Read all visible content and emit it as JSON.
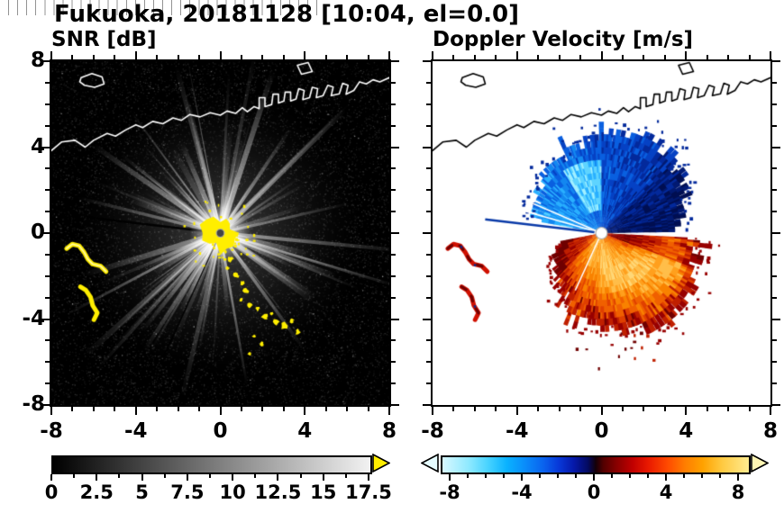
{
  "title": "Fukuoka, 20181128 [10:04, el=0.0]",
  "panels": {
    "snr": {
      "title": "SNR [dB]"
    },
    "vel": {
      "title": "Doppler Velocity [m/s]"
    }
  },
  "axes": {
    "range": [
      -8,
      8
    ],
    "major_ticks": [
      -8,
      -4,
      0,
      4,
      8
    ],
    "minor_step": 1,
    "x_labels": [
      "-8",
      "-4",
      "0",
      "4",
      "8"
    ],
    "y_labels": [
      "8",
      "4",
      "0",
      "-4",
      "-8"
    ]
  },
  "colorbars": {
    "snr": {
      "min": 0,
      "max": 17.5,
      "values": [
        0,
        2.5,
        5,
        7.5,
        10,
        12.5,
        15,
        17.5
      ],
      "labels": [
        "0",
        "2.5",
        "5",
        "7.5",
        "10",
        "12.5",
        "15",
        "17.5"
      ],
      "minor_step": 1.25,
      "cell_step": 0.5,
      "start_color": "#000000",
      "end_color": "#f2f2f2",
      "over_arrow_color": "#ffee00"
    },
    "vel": {
      "min": -8.5,
      "max": 8.5,
      "values": [
        -8,
        -4,
        0,
        4,
        8
      ],
      "labels": [
        "-8",
        "-4",
        "0",
        "4",
        "8"
      ],
      "minor_step": 1,
      "stops": [
        [
          0,
          "#d8f8ff"
        ],
        [
          0.09,
          "#8ae8ff"
        ],
        [
          0.15,
          "#46d2ff"
        ],
        [
          0.21,
          "#0ab2ff"
        ],
        [
          0.27,
          "#0a8cfa"
        ],
        [
          0.33,
          "#0a62ee"
        ],
        [
          0.38,
          "#0838d8"
        ],
        [
          0.43,
          "#0618a8"
        ],
        [
          0.475,
          "#030a60"
        ],
        [
          0.5,
          "#140008"
        ],
        [
          0.525,
          "#520000"
        ],
        [
          0.57,
          "#8a0000"
        ],
        [
          0.62,
          "#c00000"
        ],
        [
          0.67,
          "#e81800"
        ],
        [
          0.735,
          "#ff4a00"
        ],
        [
          0.79,
          "#ff7c00"
        ],
        [
          0.85,
          "#ffa200"
        ],
        [
          0.91,
          "#ffc83e"
        ],
        [
          1,
          "#ffeb90"
        ]
      ],
      "under_arrow_color": "#e6fcff",
      "over_arrow_color": "#fff6b4"
    }
  },
  "chart_data": {
    "type": "heatmap",
    "subtype": "radar PPI (plan position indicator), two-panel display",
    "station": "Fukuoka",
    "date": "20181128",
    "time": "10:04",
    "elevation_deg": 0.0,
    "axis_range": [
      -8,
      8
    ],
    "panels": [
      {
        "name": "SNR",
        "units": "dB",
        "scale_range": [
          0,
          17.5
        ],
        "scale_ticks": [
          0,
          2.5,
          5,
          7.5,
          10,
          12.5,
          15,
          17.5
        ],
        "palette": "grayscale, 0 dB = black to 17.5 dB = white, above range = yellow",
        "content": "Dark noisy background with bright radial beams from the radar at the origin; saturated (yellow) echoes at the radar site, along a clutter chain to the south-southeast, and on two island/coast arcs to the west; coastline with harbor structures drawn in white along the top."
      },
      {
        "name": "Doppler Velocity",
        "units": "m/s",
        "scale_range": [
          -8,
          8
        ],
        "scale_ticks": [
          -8,
          -4,
          0,
          4,
          8
        ],
        "palette": "cyan-blue for negative, black near 0, red-orange-yellow for positive",
        "content": "Velocity fan around the radar: negative velocities (blue, about -1 to -8 m/s) over the northern half, positive velocities (orange/red, about +1 to +8 m/s) over the southern half; sparse red echoes over the western island arcs; coastline drawn in black."
      }
    ],
    "geometry": {
      "center": [
        0.5,
        0.5
      ],
      "coastline": [
        [
          0,
          0.26
        ],
        [
          0.03,
          0.235
        ],
        [
          0.07,
          0.23
        ],
        [
          0.1,
          0.25
        ],
        [
          0.125,
          0.23
        ],
        [
          0.165,
          0.21
        ],
        [
          0.19,
          0.218
        ],
        [
          0.22,
          0.2
        ],
        [
          0.25,
          0.185
        ],
        [
          0.27,
          0.193
        ],
        [
          0.3,
          0.175
        ],
        [
          0.33,
          0.182
        ],
        [
          0.36,
          0.165
        ],
        [
          0.385,
          0.172
        ],
        [
          0.41,
          0.155
        ],
        [
          0.44,
          0.162
        ],
        [
          0.47,
          0.15
        ],
        [
          0.5,
          0.157
        ],
        [
          0.52,
          0.145
        ],
        [
          0.545,
          0.152
        ],
        [
          0.565,
          0.135
        ],
        [
          0.58,
          0.147
        ],
        [
          0.6,
          0.132
        ],
        [
          0.615,
          0.138
        ],
        [
          0.615,
          0.106
        ],
        [
          0.632,
          0.106
        ],
        [
          0.632,
          0.132
        ],
        [
          0.652,
          0.126
        ],
        [
          0.656,
          0.096
        ],
        [
          0.672,
          0.096
        ],
        [
          0.672,
          0.122
        ],
        [
          0.688,
          0.116
        ],
        [
          0.692,
          0.09
        ],
        [
          0.708,
          0.09
        ],
        [
          0.708,
          0.116
        ],
        [
          0.724,
          0.11
        ],
        [
          0.732,
          0.08
        ],
        [
          0.748,
          0.085
        ],
        [
          0.744,
          0.112
        ],
        [
          0.764,
          0.106
        ],
        [
          0.772,
          0.076
        ],
        [
          0.788,
          0.08
        ],
        [
          0.784,
          0.106
        ],
        [
          0.804,
          0.1
        ],
        [
          0.818,
          0.07
        ],
        [
          0.834,
          0.075
        ],
        [
          0.828,
          0.1
        ],
        [
          0.852,
          0.095
        ],
        [
          0.862,
          0.064
        ],
        [
          0.878,
          0.07
        ],
        [
          0.872,
          0.096
        ],
        [
          0.895,
          0.085
        ],
        [
          0.912,
          0.06
        ],
        [
          0.932,
          0.066
        ],
        [
          0.952,
          0.054
        ],
        [
          0.972,
          0.06
        ],
        [
          1,
          0.048
        ]
      ],
      "island": [
        [
          0.088,
          0.048
        ],
        [
          0.12,
          0.036
        ],
        [
          0.15,
          0.046
        ],
        [
          0.156,
          0.066
        ],
        [
          0.128,
          0.076
        ],
        [
          0.098,
          0.07
        ],
        [
          0.084,
          0.06
        ]
      ],
      "dock": [
        [
          0.728,
          0.012
        ],
        [
          0.76,
          0.004
        ],
        [
          0.772,
          0.03
        ],
        [
          0.74,
          0.038
        ]
      ],
      "west_arc_1": [
        [
          0.045,
          0.545
        ],
        [
          0.062,
          0.532
        ],
        [
          0.082,
          0.537
        ],
        [
          0.097,
          0.556
        ],
        [
          0.108,
          0.576
        ],
        [
          0.122,
          0.59
        ],
        [
          0.146,
          0.596
        ],
        [
          0.162,
          0.612
        ]
      ],
      "west_arc_2": [
        [
          0.086,
          0.656
        ],
        [
          0.102,
          0.666
        ],
        [
          0.116,
          0.686
        ],
        [
          0.122,
          0.71
        ],
        [
          0.136,
          0.732
        ],
        [
          0.126,
          0.752
        ]
      ],
      "clutter_chain": [
        [
          0.515,
          0.553,
          2
        ],
        [
          0.53,
          0.575,
          3
        ],
        [
          0.521,
          0.6,
          2
        ],
        [
          0.546,
          0.623,
          3
        ],
        [
          0.565,
          0.645,
          2.5
        ],
        [
          0.576,
          0.668,
          3
        ],
        [
          0.561,
          0.693,
          2
        ],
        [
          0.586,
          0.71,
          3
        ],
        [
          0.61,
          0.72,
          2.5
        ],
        [
          0.631,
          0.744,
          3.5
        ],
        [
          0.652,
          0.734,
          2
        ],
        [
          0.666,
          0.758,
          3
        ],
        [
          0.69,
          0.77,
          4
        ],
        [
          0.711,
          0.754,
          2.5
        ],
        [
          0.73,
          0.788,
          3
        ],
        [
          0.6,
          0.8,
          2
        ],
        [
          0.622,
          0.822,
          2.5
        ],
        [
          0.586,
          0.852,
          2
        ]
      ],
      "blue_fan": [
        [
          3.32,
          72
        ],
        [
          3.7,
          82
        ],
        [
          4.1,
          90
        ],
        [
          4.5,
          102
        ],
        [
          4.9,
          114
        ],
        [
          5.2,
          120
        ],
        [
          5.5,
          110
        ],
        [
          5.8,
          102
        ],
        [
          6.05,
          92
        ],
        [
          6.24,
          84
        ]
      ],
      "warm_fan": [
        [
          0.05,
          102
        ],
        [
          0.4,
          110
        ],
        [
          0.8,
          120
        ],
        [
          1.2,
          114
        ],
        [
          1.57,
          100
        ],
        [
          1.9,
          90
        ],
        [
          2.2,
          74
        ],
        [
          2.5,
          62
        ],
        [
          2.75,
          52
        ],
        [
          2.93,
          44
        ]
      ],
      "shadow_line_theta": 3.26
    },
    "palettes": {
      "blues": [
        "#a2f0ff",
        "#5fd4ff",
        "#2ab0ff",
        "#1488f0",
        "#0a60e0",
        "#0642c4",
        "#042a9c",
        "#021a72",
        "#010f52"
      ],
      "warms": [
        "#ffd878",
        "#ffbe4a",
        "#ffa01e",
        "#f98200",
        "#f06000",
        "#e04000",
        "#c02000",
        "#980000",
        "#700000"
      ]
    }
  }
}
